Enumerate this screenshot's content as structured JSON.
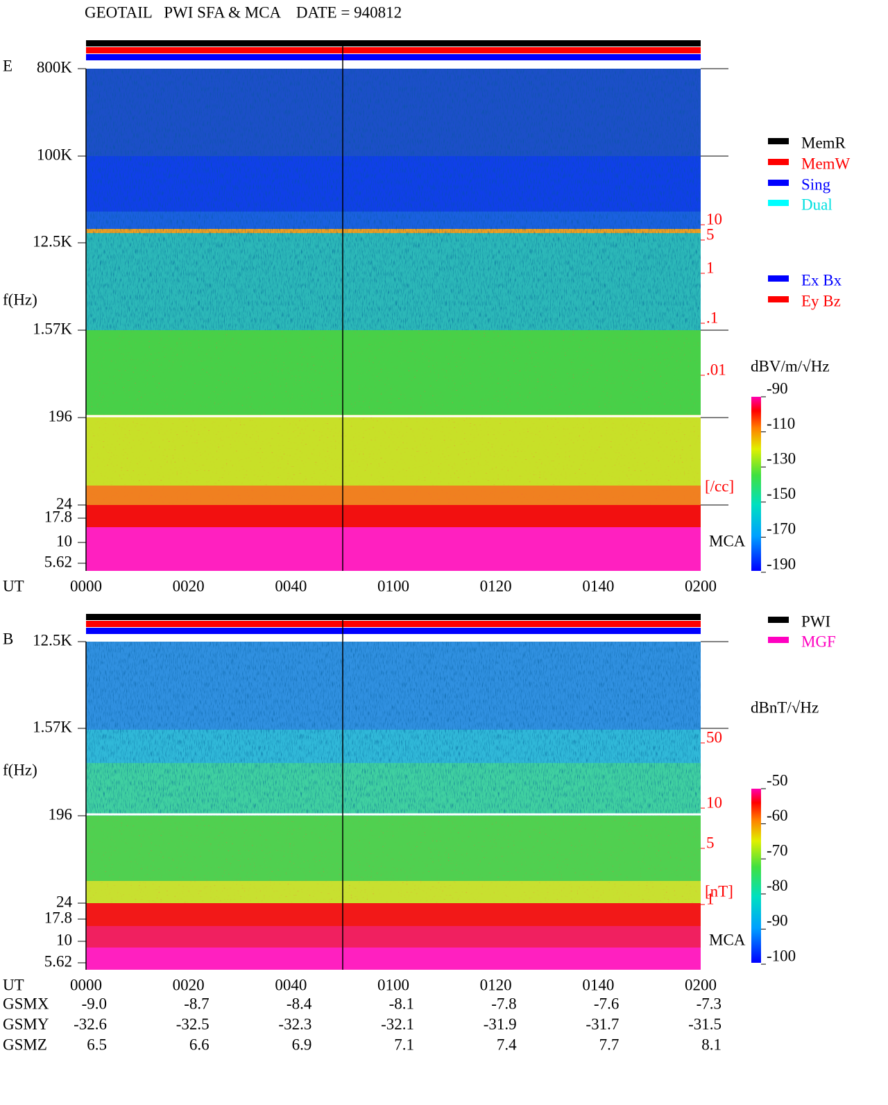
{
  "title": "GEOTAIL   PWI SFA & MCA    DATE = 940812",
  "panel_e": {
    "label": "E",
    "y_axis_label": "f(Hz)",
    "freq_ticks": [
      "800K",
      "100K",
      "12.5K",
      "1.57K",
      "196",
      "24",
      "17.8",
      "10",
      "5.62"
    ],
    "density_ticks": [
      "10",
      "5",
      "1",
      ".1",
      ".01"
    ],
    "density_unit": "[/cc]",
    "mca_label": "MCA",
    "colorbar_unit": "dBV/m/√Hz",
    "colorbar_ticks": [
      "-90",
      "-110",
      "-130",
      "-150",
      "-170",
      "-190"
    ],
    "time_axis_label": "UT",
    "time_ticks": [
      "0000",
      "0020",
      "0040",
      "0100",
      "0120",
      "0140",
      "0200"
    ]
  },
  "panel_b": {
    "label": "B",
    "y_axis_label": "f(Hz)",
    "freq_ticks": [
      "12.5K",
      "1.57K",
      "196",
      "24",
      "17.8",
      "10",
      "5.62"
    ],
    "density_ticks": [
      "50",
      "10",
      "5",
      "1"
    ],
    "density_unit": "[nT]",
    "mca_label": "MCA",
    "colorbar_unit": "dBnT/√Hz",
    "colorbar_ticks": [
      "-50",
      "-60",
      "-70",
      "-80",
      "-90",
      "-100"
    ],
    "time_axis_label": "UT",
    "time_ticks": [
      "0000",
      "0020",
      "0040",
      "0100",
      "0120",
      "0140",
      "0200"
    ]
  },
  "legend_mode": [
    "MemR",
    "MemW",
    "Sing",
    "Dual"
  ],
  "legend_component": [
    "Ex Bx",
    "Ey Bz"
  ],
  "legend_source": [
    "PWI",
    "MGF"
  ],
  "orbit": [
    {
      "label": "GSMX",
      "values": [
        "-9.0",
        "-8.7",
        "-8.4",
        "-8.1",
        "-7.8",
        "-7.6",
        "-7.3"
      ]
    },
    {
      "label": "GSMY",
      "values": [
        "-32.6",
        "-32.5",
        "-32.3",
        "-32.1",
        "-31.9",
        "-31.7",
        "-31.5"
      ]
    },
    {
      "label": "GSMZ",
      "values": [
        "6.5",
        "6.6",
        "6.9",
        "7.1",
        "7.4",
        "7.7",
        "8.1"
      ]
    }
  ]
}
